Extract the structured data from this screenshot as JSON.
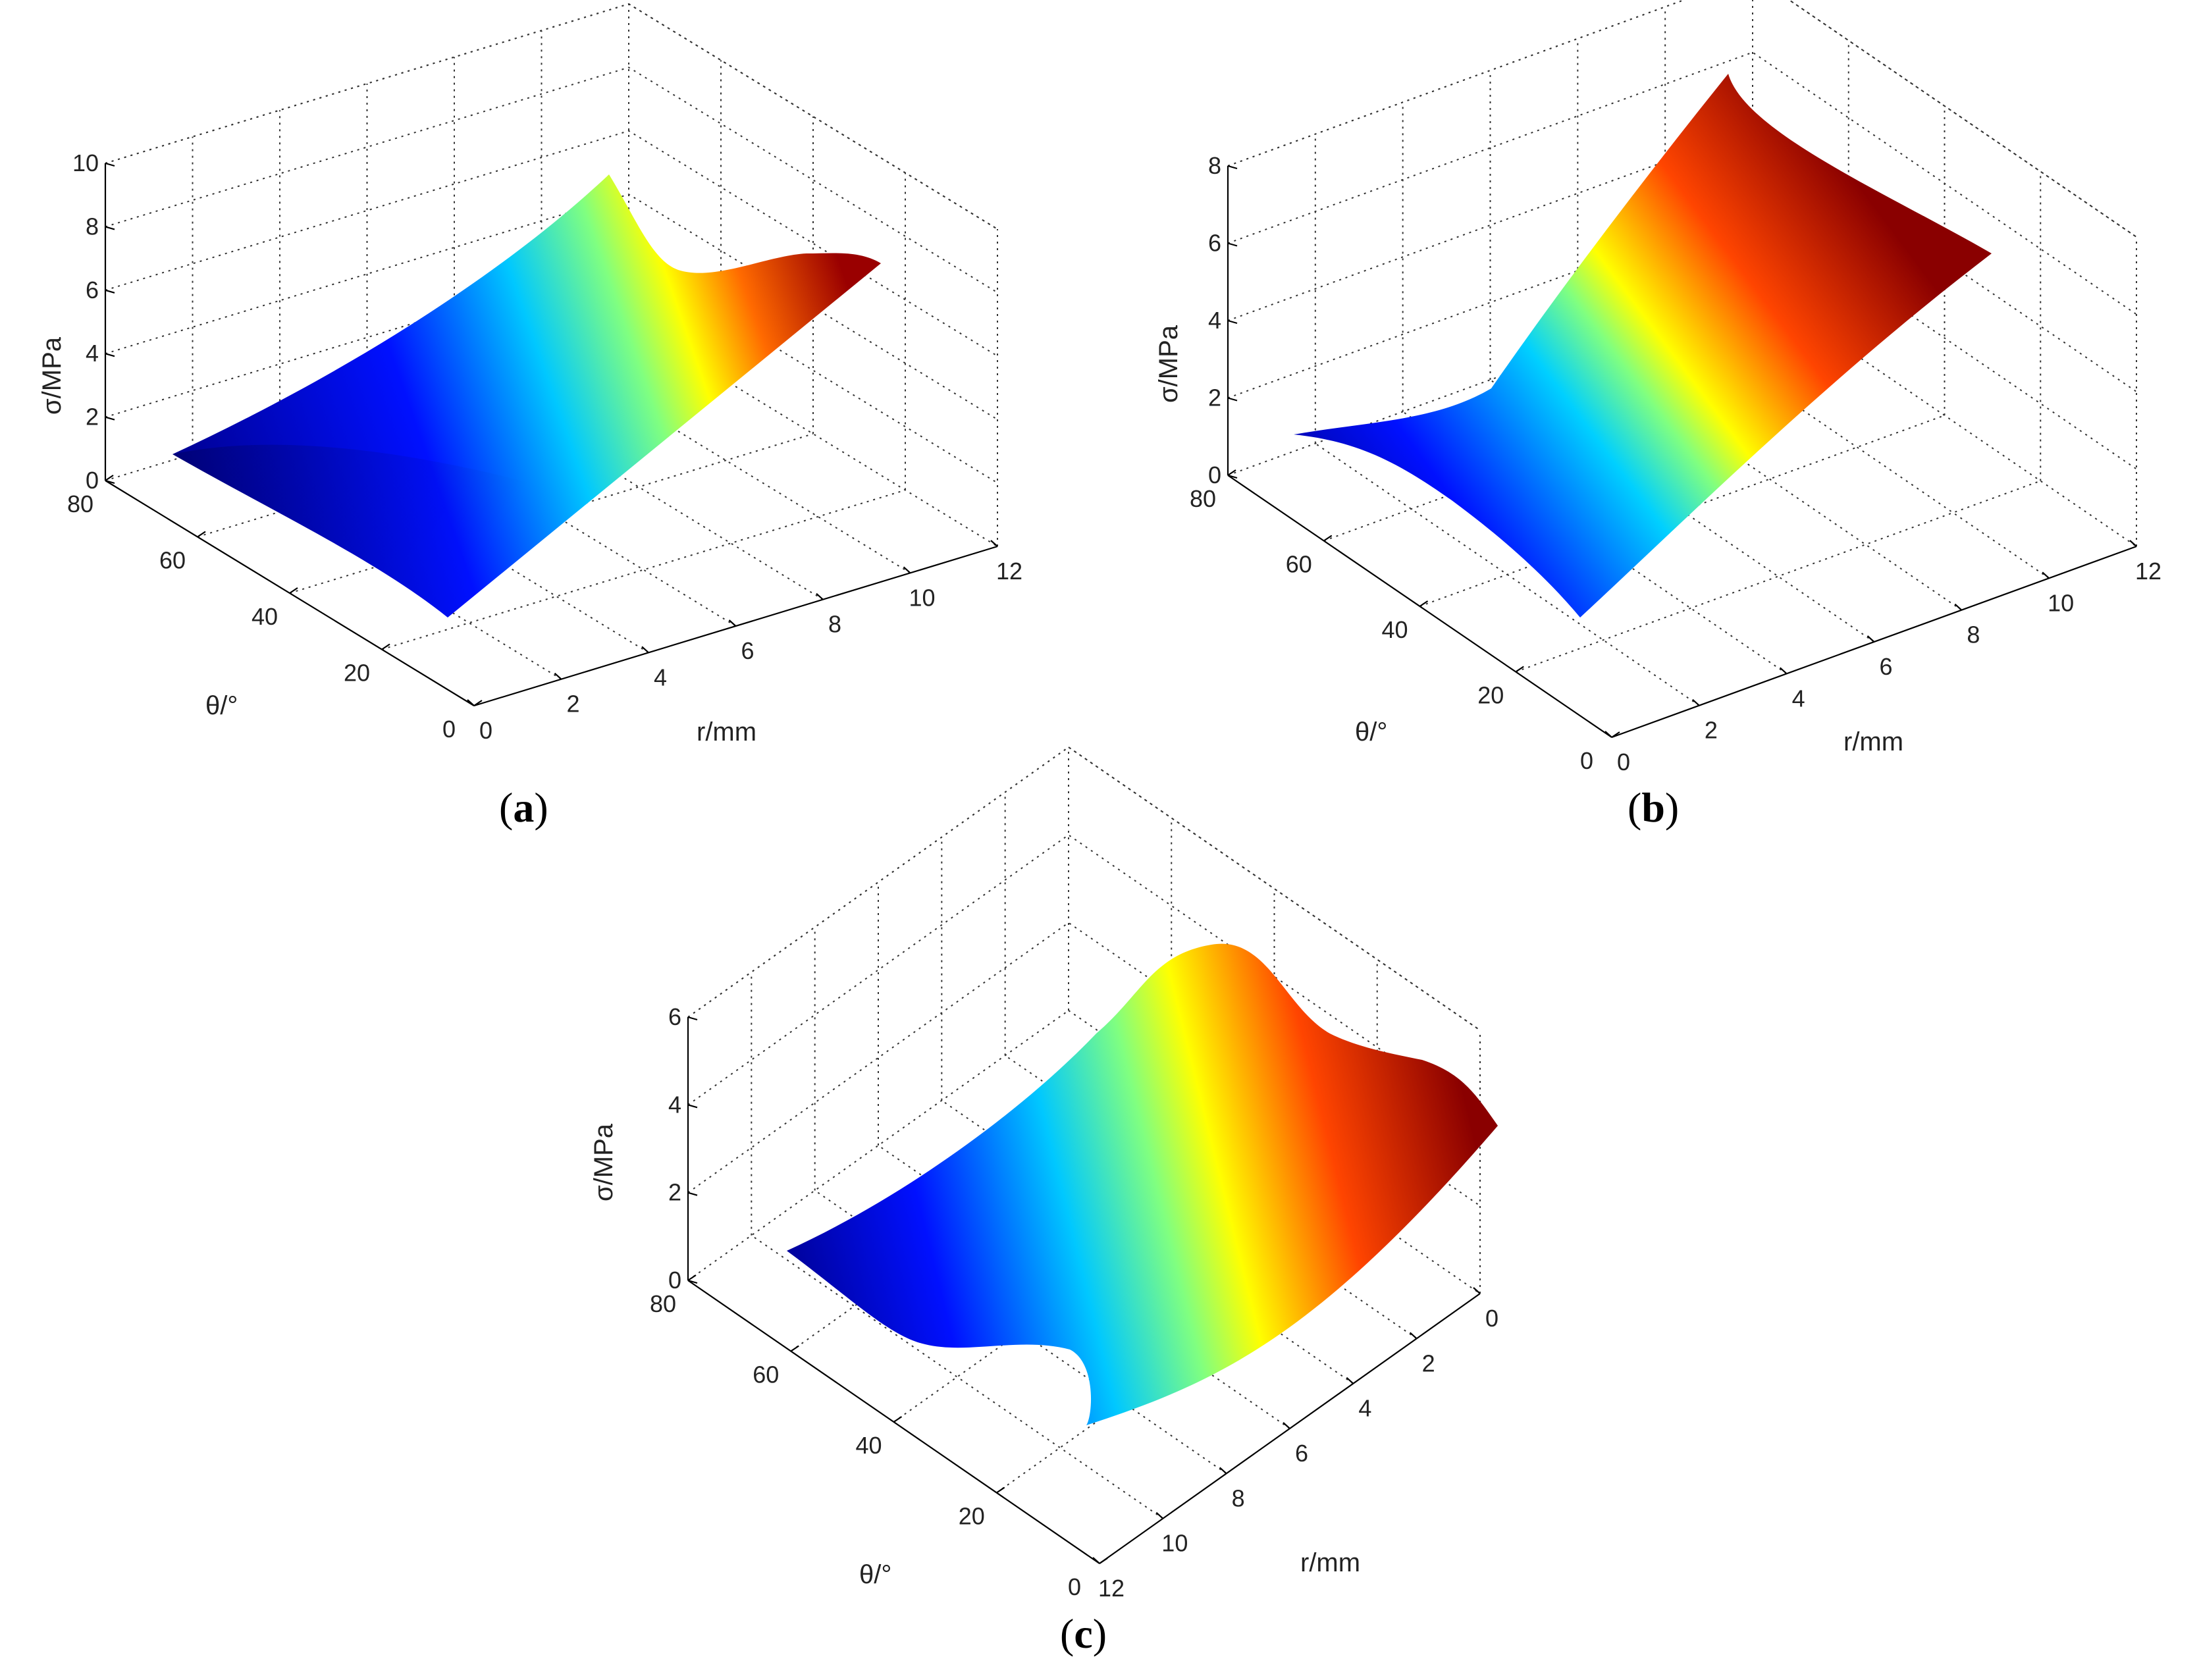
{
  "chart_data": [
    {
      "type": "surface",
      "panel": "a",
      "caption_open": "(",
      "caption_letter": "a",
      "caption_close": ")",
      "xlabel": "r/mm",
      "ylabel": "θ/°",
      "zlabel": "σ/MPa",
      "xlim": [
        0,
        12
      ],
      "ylim": [
        0,
        80
      ],
      "zlim": [
        0,
        10
      ],
      "xticks": [
        "0",
        "2",
        "4",
        "6",
        "8",
        "10",
        "12"
      ],
      "yticks": [
        "0",
        "20",
        "40",
        "60",
        "80"
      ],
      "zticks": [
        "0",
        "2",
        "4",
        "6",
        "8",
        "10"
      ],
      "surface_corners": {
        "r0_theta0": 0.3,
        "r0_theta80": 0.3,
        "r12_theta0": 7.2,
        "r12_theta80": 7.2
      },
      "grid": true,
      "colormap": "jet"
    },
    {
      "type": "surface",
      "panel": "b",
      "caption_open": "(",
      "caption_letter": "b",
      "caption_close": ")",
      "xlabel": "r/mm",
      "ylabel": "θ/°",
      "zlabel": "σ/MPa",
      "xlim": [
        0,
        12
      ],
      "ylim": [
        0,
        80
      ],
      "zlim": [
        0,
        8
      ],
      "xticks": [
        "0",
        "2",
        "4",
        "6",
        "8",
        "10",
        "12"
      ],
      "yticks": [
        "0",
        "20",
        "40",
        "60",
        "80"
      ],
      "zticks": [
        "0",
        "2",
        "4",
        "6",
        "8"
      ],
      "surface_corners": {
        "r0_theta0": 0.1,
        "r0_theta80": 0.1,
        "r12_theta0": 8.1,
        "r12_theta80": 8.1
      },
      "grid": true,
      "colormap": "jet"
    },
    {
      "type": "surface",
      "panel": "c",
      "caption_open": "(",
      "caption_letter": "c",
      "caption_close": ")",
      "xlabel": "r/mm",
      "ylabel": "θ/°",
      "zlabel": "σ/MPa",
      "xlim": [
        12,
        0
      ],
      "ylim": [
        0,
        80
      ],
      "zlim": [
        0,
        6
      ],
      "xticks": [
        "12",
        "10",
        "8",
        "6",
        "4",
        "2",
        "0"
      ],
      "yticks": [
        "0",
        "20",
        "40",
        "60",
        "80"
      ],
      "zticks": [
        "0",
        "2",
        "4",
        "6"
      ],
      "surface_corners": {
        "r0_theta0": 3.8,
        "r0_theta80": 3.8,
        "r12_theta0": 0.2,
        "r12_theta80": 0.2
      },
      "grid": true,
      "colormap": "jet"
    }
  ]
}
